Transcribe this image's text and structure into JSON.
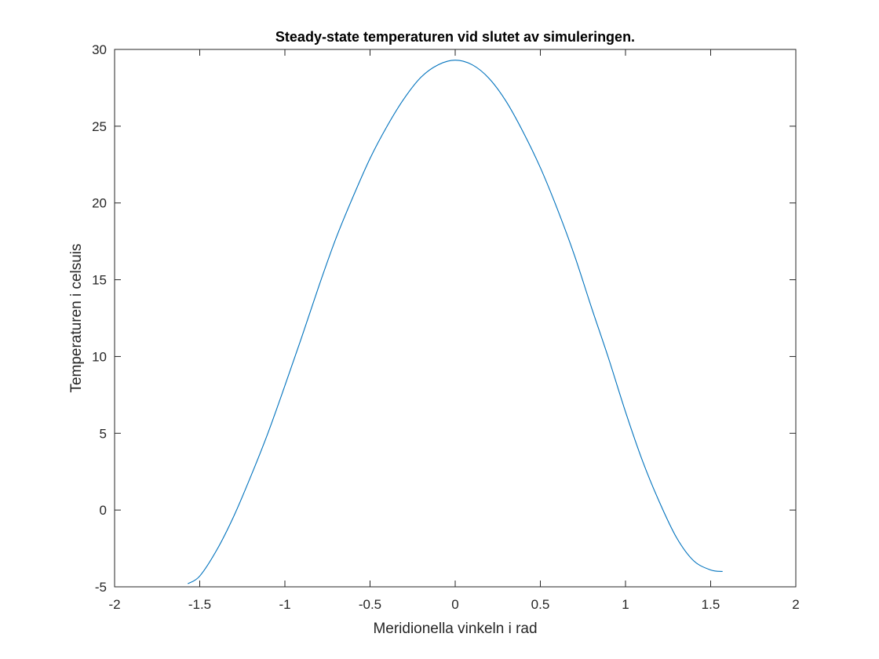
{
  "chart_data": {
    "type": "line",
    "title": "Steady-state temperaturen vid slutet av simuleringen.",
    "xlabel": "Meridionella vinkeln i rad",
    "ylabel": "Temperaturen i celsuis",
    "xlim": [
      -2,
      2
    ],
    "ylim": [
      -5,
      30
    ],
    "xticks": [
      -2,
      -1.5,
      -1,
      -0.5,
      0,
      0.5,
      1,
      1.5,
      2
    ],
    "xtick_labels": [
      "-2",
      "-1.5",
      "-1",
      "-0.5",
      "0",
      "0.5",
      "1",
      "1.5",
      "2"
    ],
    "yticks": [
      -5,
      0,
      5,
      10,
      15,
      20,
      25,
      30
    ],
    "ytick_labels": [
      "-5",
      "0",
      "5",
      "10",
      "15",
      "20",
      "25",
      "30"
    ],
    "grid": false,
    "box": true,
    "series": [
      {
        "color": "#0072BD",
        "x": [
          -1.57,
          -1.5,
          -1.4,
          -1.3,
          -1.2,
          -1.1,
          -1.0,
          -0.9,
          -0.8,
          -0.7,
          -0.6,
          -0.5,
          -0.4,
          -0.3,
          -0.2,
          -0.1,
          0.0,
          0.1,
          0.2,
          0.3,
          0.4,
          0.5,
          0.6,
          0.7,
          0.8,
          0.9,
          1.0,
          1.1,
          1.2,
          1.3,
          1.4,
          1.5,
          1.57
        ],
        "y": [
          -4.8,
          -4.3,
          -2.6,
          -0.4,
          2.2,
          5.0,
          8.1,
          11.3,
          14.6,
          17.7,
          20.4,
          22.9,
          25.0,
          26.8,
          28.2,
          29.0,
          29.3,
          29.0,
          28.1,
          26.6,
          24.6,
          22.3,
          19.6,
          16.6,
          13.2,
          9.9,
          6.4,
          3.2,
          0.5,
          -1.8,
          -3.3,
          -3.9,
          -4.0
        ]
      }
    ]
  }
}
